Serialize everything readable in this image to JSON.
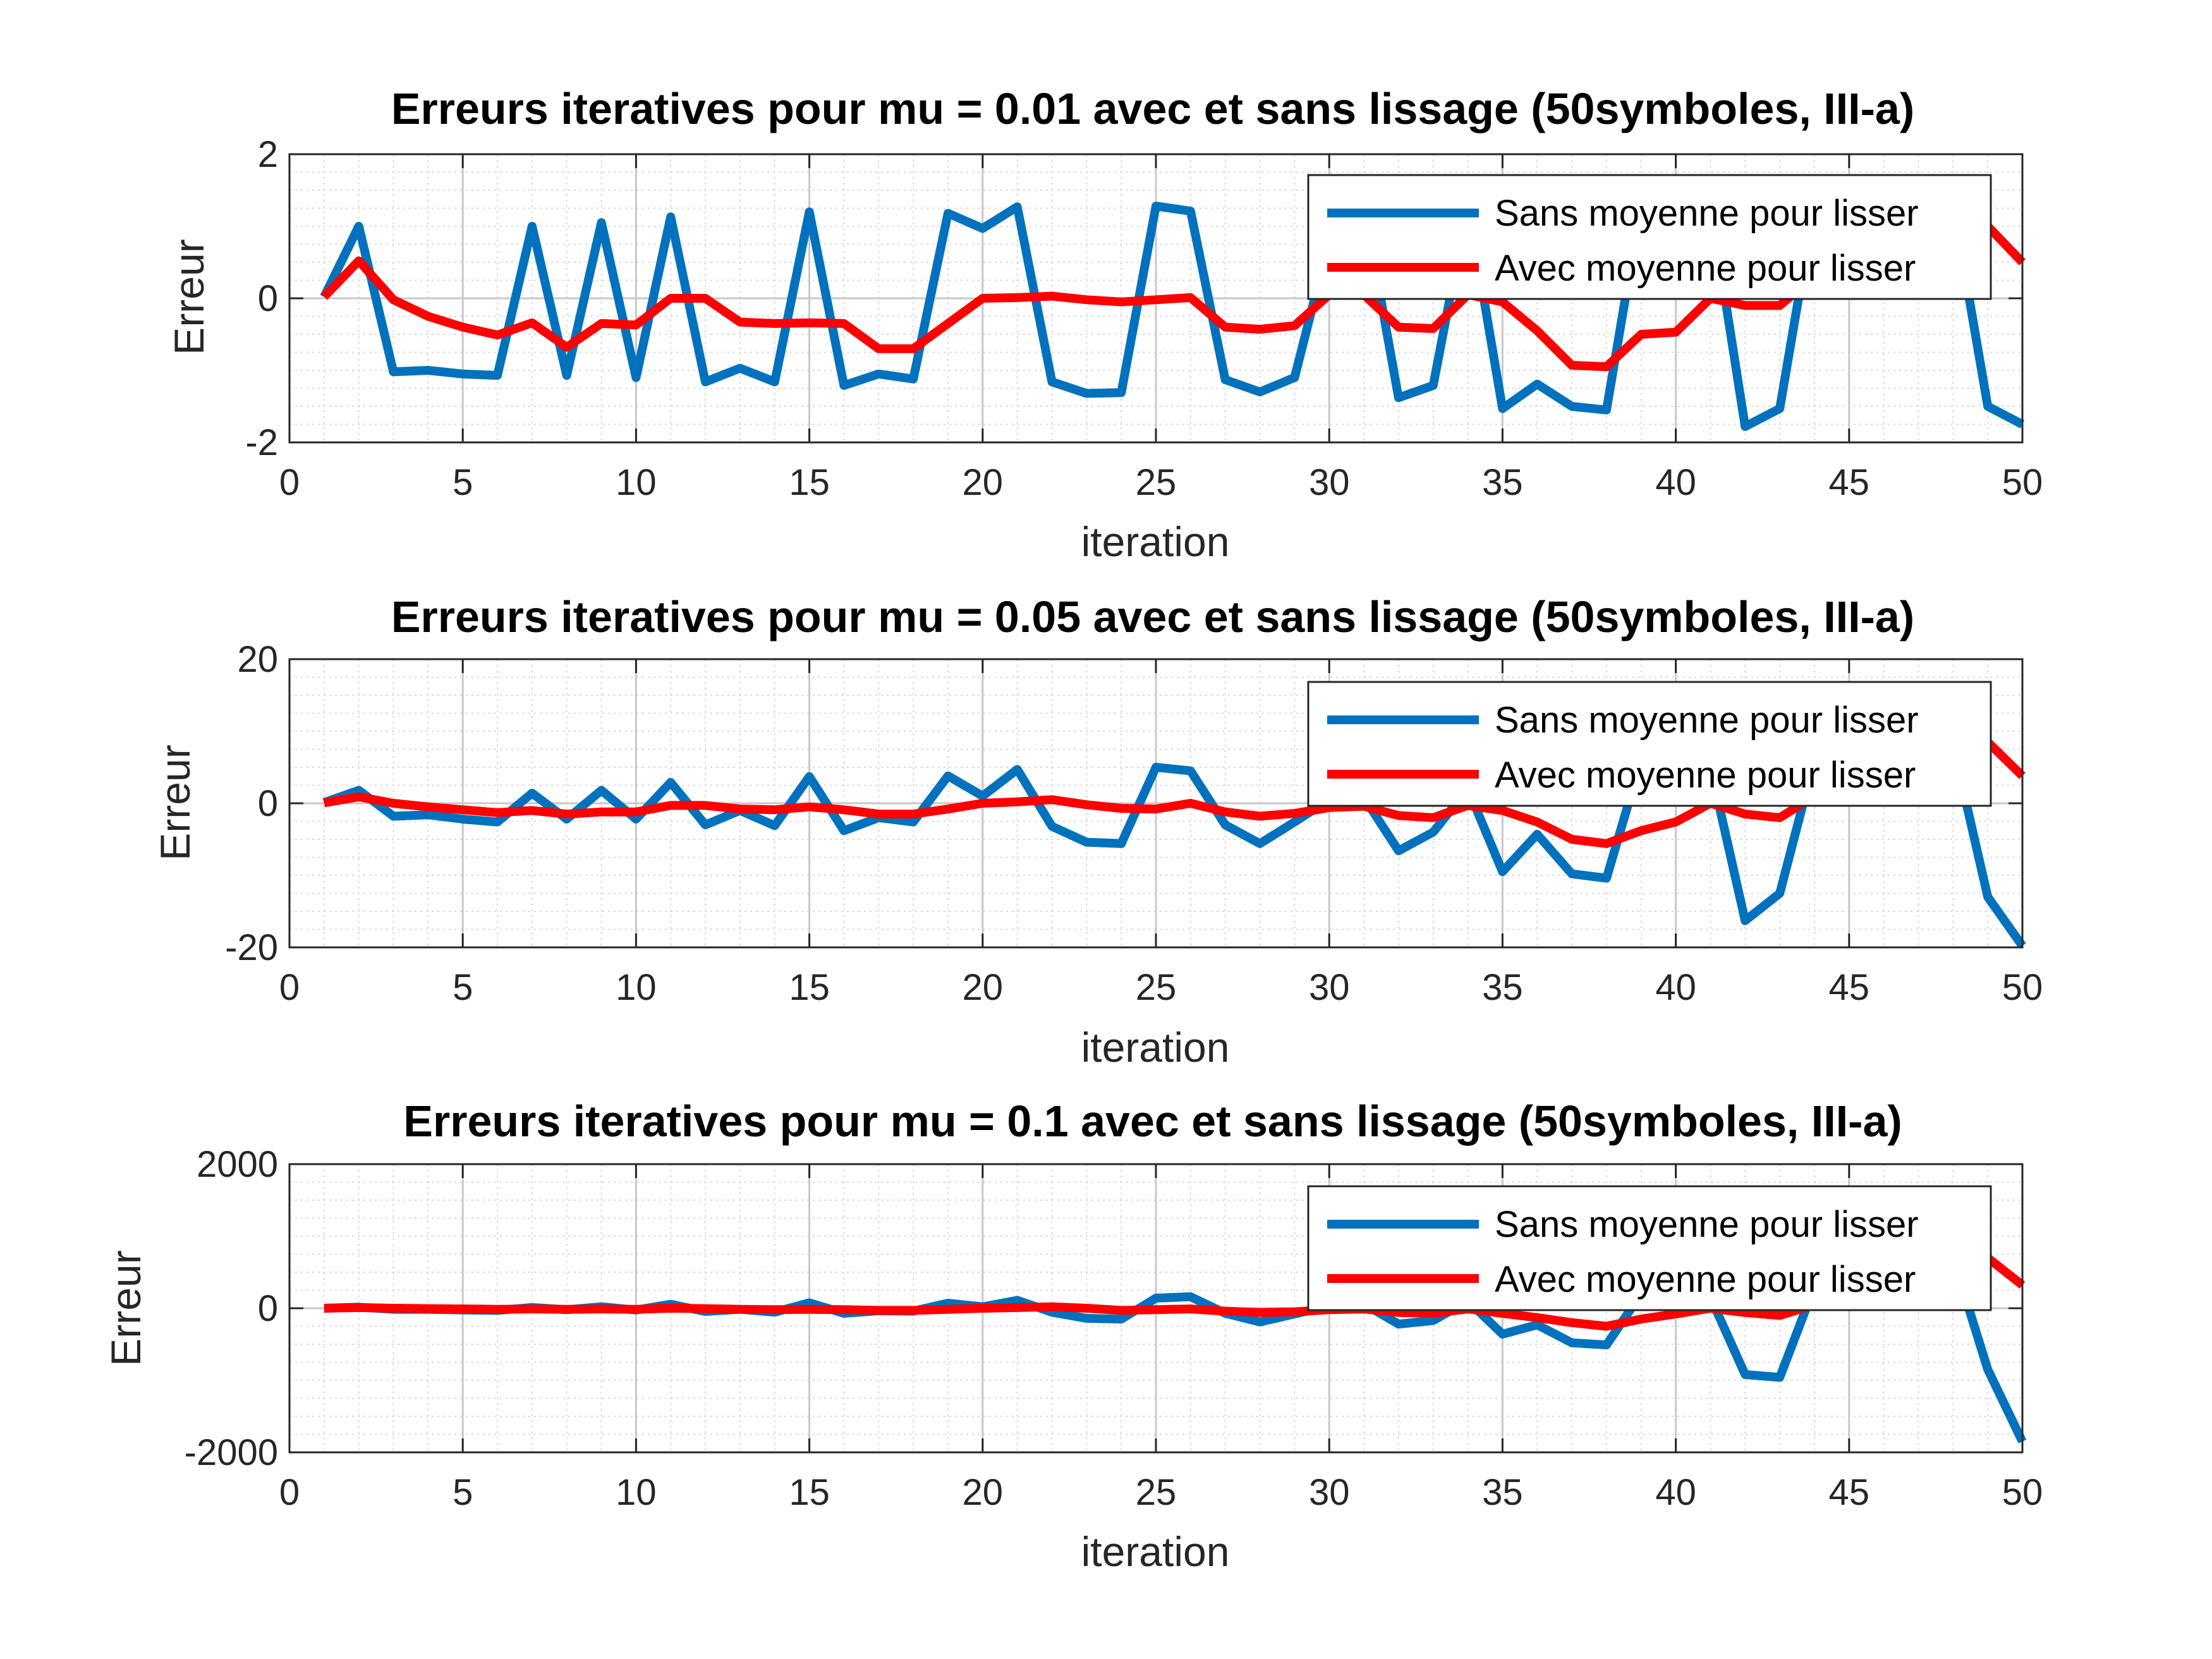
{
  "colors": {
    "sans": "#0072BD",
    "avec": "#FF0000"
  },
  "chart_data": [
    {
      "type": "line",
      "title": "Erreurs iteratives pour mu = 0.01 avec et sans lissage (50symboles, III-a)",
      "xlabel": "iteration",
      "ylabel": "Erreur",
      "xlim": [
        0,
        50
      ],
      "ylim": [
        -2,
        2
      ],
      "xticks": [
        0,
        5,
        10,
        15,
        20,
        25,
        30,
        35,
        40,
        45,
        50
      ],
      "yticks": [
        -2,
        0,
        2
      ],
      "grid": true,
      "minor_grid": true,
      "legend_position": "top-right",
      "series": [
        {
          "name": "Sans moyenne pour lisser",
          "x": [
            1,
            2,
            3,
            4,
            5,
            6,
            7,
            8,
            9,
            10,
            11,
            12,
            13,
            14,
            15,
            16,
            17,
            18,
            19,
            20,
            21,
            22,
            23,
            24,
            25,
            26,
            27,
            28,
            29,
            30,
            31,
            32,
            33,
            34,
            35,
            36,
            37,
            38,
            39,
            40,
            41,
            42,
            43,
            44,
            45,
            46,
            47,
            48,
            49,
            50
          ],
          "y": [
            0.02,
            1.0,
            -1.02,
            -1.0,
            -1.05,
            -1.07,
            1.0,
            -1.07,
            1.05,
            -1.1,
            1.13,
            -1.16,
            -0.97,
            -1.16,
            1.2,
            -1.21,
            -1.05,
            -1.12,
            1.18,
            0.97,
            1.27,
            -1.16,
            -1.32,
            -1.31,
            1.28,
            1.21,
            -1.13,
            -1.3,
            -1.1,
            0.8,
            1.3,
            -1.38,
            -1.21,
            1.3,
            -1.53,
            -1.19,
            -1.5,
            -1.55,
            1.3,
            1.25,
            1.3,
            -1.78,
            -1.53,
            1.3,
            1.3,
            1.3,
            1.3,
            1.3,
            -1.5,
            -1.75
          ]
        },
        {
          "name": "Avec moyenne pour lisser",
          "x": [
            1,
            2,
            3,
            4,
            5,
            6,
            7,
            8,
            9,
            10,
            11,
            12,
            13,
            14,
            15,
            16,
            17,
            18,
            19,
            20,
            21,
            22,
            23,
            24,
            25,
            26,
            27,
            28,
            29,
            30,
            31,
            32,
            33,
            34,
            35,
            36,
            37,
            38,
            39,
            40,
            41,
            42,
            43,
            44,
            45,
            46,
            47,
            48,
            49,
            50
          ],
          "y": [
            0.02,
            0.52,
            -0.02,
            -0.25,
            -0.4,
            -0.51,
            -0.34,
            -0.68,
            -0.35,
            -0.37,
            0.0,
            0.0,
            -0.33,
            -0.35,
            -0.34,
            -0.35,
            -0.7,
            -0.7,
            -0.35,
            0.0,
            0.01,
            0.03,
            -0.02,
            -0.05,
            -0.02,
            0.01,
            -0.4,
            -0.43,
            -0.38,
            0.05,
            0.05,
            -0.4,
            -0.42,
            0.05,
            -0.05,
            -0.45,
            -0.93,
            -0.95,
            -0.5,
            -0.47,
            0.0,
            -0.1,
            -0.1,
            0.3,
            0.4,
            0.6,
            0.8,
            0.95,
            1.0,
            0.5
          ]
        }
      ]
    },
    {
      "type": "line",
      "title": "Erreurs iteratives pour mu = 0.05 avec et sans lissage (50symboles, III-a)",
      "xlabel": "iteration",
      "ylabel": "Erreur",
      "xlim": [
        0,
        50
      ],
      "ylim": [
        -20,
        20
      ],
      "xticks": [
        0,
        5,
        10,
        15,
        20,
        25,
        30,
        35,
        40,
        45,
        50
      ],
      "yticks": [
        -20,
        0,
        20
      ],
      "grid": true,
      "minor_grid": true,
      "legend_position": "top-right",
      "series": [
        {
          "name": "Sans moyenne pour lisser",
          "x": [
            1,
            2,
            3,
            4,
            5,
            6,
            7,
            8,
            9,
            10,
            11,
            12,
            13,
            14,
            15,
            16,
            17,
            18,
            19,
            20,
            21,
            22,
            23,
            24,
            25,
            26,
            27,
            28,
            29,
            30,
            31,
            32,
            33,
            34,
            35,
            36,
            37,
            38,
            39,
            40,
            41,
            42,
            43,
            44,
            45,
            46,
            47,
            48,
            49,
            50
          ],
          "y": [
            0.1,
            1.8,
            -1.8,
            -1.6,
            -2.2,
            -2.6,
            1.4,
            -2.2,
            1.8,
            -2.2,
            2.9,
            -3.0,
            -1.0,
            -3.1,
            3.7,
            -3.8,
            -2.0,
            -2.6,
            3.8,
            1.0,
            4.7,
            -3.2,
            -5.4,
            -5.6,
            5.0,
            4.5,
            -3.0,
            -5.6,
            -2.6,
            0.5,
            0.8,
            -6.6,
            -4.0,
            2.0,
            -9.5,
            -4.3,
            -9.8,
            -10.4,
            6.0,
            6.0,
            5.0,
            -16.3,
            -12.5,
            6.0,
            8.0,
            8.0,
            8.0,
            8.0,
            -13.0,
            -19.8
          ]
        },
        {
          "name": "Avec moyenne pour lisser",
          "x": [
            1,
            2,
            3,
            4,
            5,
            6,
            7,
            8,
            9,
            10,
            11,
            12,
            13,
            14,
            15,
            16,
            17,
            18,
            19,
            20,
            21,
            22,
            23,
            24,
            25,
            26,
            27,
            28,
            29,
            30,
            31,
            32,
            33,
            34,
            35,
            36,
            37,
            38,
            39,
            40,
            41,
            42,
            43,
            44,
            45,
            46,
            47,
            48,
            49,
            50
          ],
          "y": [
            0.05,
            0.9,
            0.0,
            -0.5,
            -0.9,
            -1.3,
            -1.0,
            -1.5,
            -1.2,
            -1.2,
            -0.3,
            -0.3,
            -0.8,
            -0.9,
            -0.5,
            -0.9,
            -1.5,
            -1.5,
            -0.8,
            0.0,
            0.2,
            0.5,
            -0.2,
            -0.7,
            -0.8,
            0.0,
            -1.2,
            -1.8,
            -1.4,
            -0.6,
            -0.4,
            -1.7,
            -2.0,
            -0.3,
            -1.0,
            -2.6,
            -5.0,
            -5.6,
            -3.8,
            -2.6,
            0.0,
            -1.5,
            -2.0,
            1.0,
            2.0,
            4.0,
            6.0,
            8.0,
            8.5,
            3.8
          ]
        }
      ]
    },
    {
      "type": "line",
      "title": "Erreurs iteratives pour mu = 0.1 avec et sans lissage (50symboles, III-a)",
      "xlabel": "iteration",
      "ylabel": "Erreur",
      "xlim": [
        0,
        50
      ],
      "ylim": [
        -2000,
        2000
      ],
      "xticks": [
        0,
        5,
        10,
        15,
        20,
        25,
        30,
        35,
        40,
        45,
        50
      ],
      "yticks": [
        -2000,
        0,
        2000
      ],
      "grid": true,
      "minor_grid": true,
      "legend_position": "top-right",
      "series": [
        {
          "name": "Sans moyenne pour lisser",
          "x": [
            1,
            2,
            3,
            4,
            5,
            6,
            7,
            8,
            9,
            10,
            11,
            12,
            13,
            14,
            15,
            16,
            17,
            18,
            19,
            20,
            21,
            22,
            23,
            24,
            25,
            26,
            27,
            28,
            29,
            30,
            31,
            32,
            33,
            34,
            35,
            36,
            37,
            38,
            39,
            40,
            41,
            42,
            43,
            44,
            45,
            46,
            47,
            48,
            49,
            50
          ],
          "y": [
            0,
            15,
            -15,
            -15,
            -25,
            -30,
            10,
            -20,
            20,
            -25,
            55,
            -45,
            -15,
            -55,
            75,
            -70,
            -35,
            -40,
            70,
            20,
            110,
            -55,
            -140,
            -150,
            140,
            160,
            -70,
            -190,
            -80,
            30,
            60,
            -220,
            -170,
            100,
            -360,
            -230,
            -480,
            -510,
            200,
            200,
            150,
            -920,
            -960,
            300,
            500,
            600,
            700,
            700,
            -850,
            -1850
          ]
        },
        {
          "name": "Avec moyenne pour lisser",
          "x": [
            1,
            2,
            3,
            4,
            5,
            6,
            7,
            8,
            9,
            10,
            11,
            12,
            13,
            14,
            15,
            16,
            17,
            18,
            19,
            20,
            21,
            22,
            23,
            24,
            25,
            26,
            27,
            28,
            29,
            30,
            31,
            32,
            33,
            34,
            35,
            36,
            37,
            38,
            39,
            40,
            41,
            42,
            43,
            44,
            45,
            46,
            47,
            48,
            49,
            50
          ],
          "y": [
            0,
            10,
            0,
            -5,
            -10,
            -15,
            -10,
            -15,
            -10,
            -15,
            0,
            -5,
            -15,
            -20,
            -15,
            -20,
            -30,
            -30,
            -15,
            0,
            10,
            20,
            0,
            -30,
            -20,
            -10,
            -40,
            -60,
            -50,
            -20,
            -10,
            -60,
            -70,
            -10,
            -70,
            -130,
            -200,
            -250,
            -150,
            -80,
            0,
            -60,
            -100,
            50,
            200,
            400,
            550,
            650,
            700,
            320
          ]
        }
      ]
    }
  ]
}
